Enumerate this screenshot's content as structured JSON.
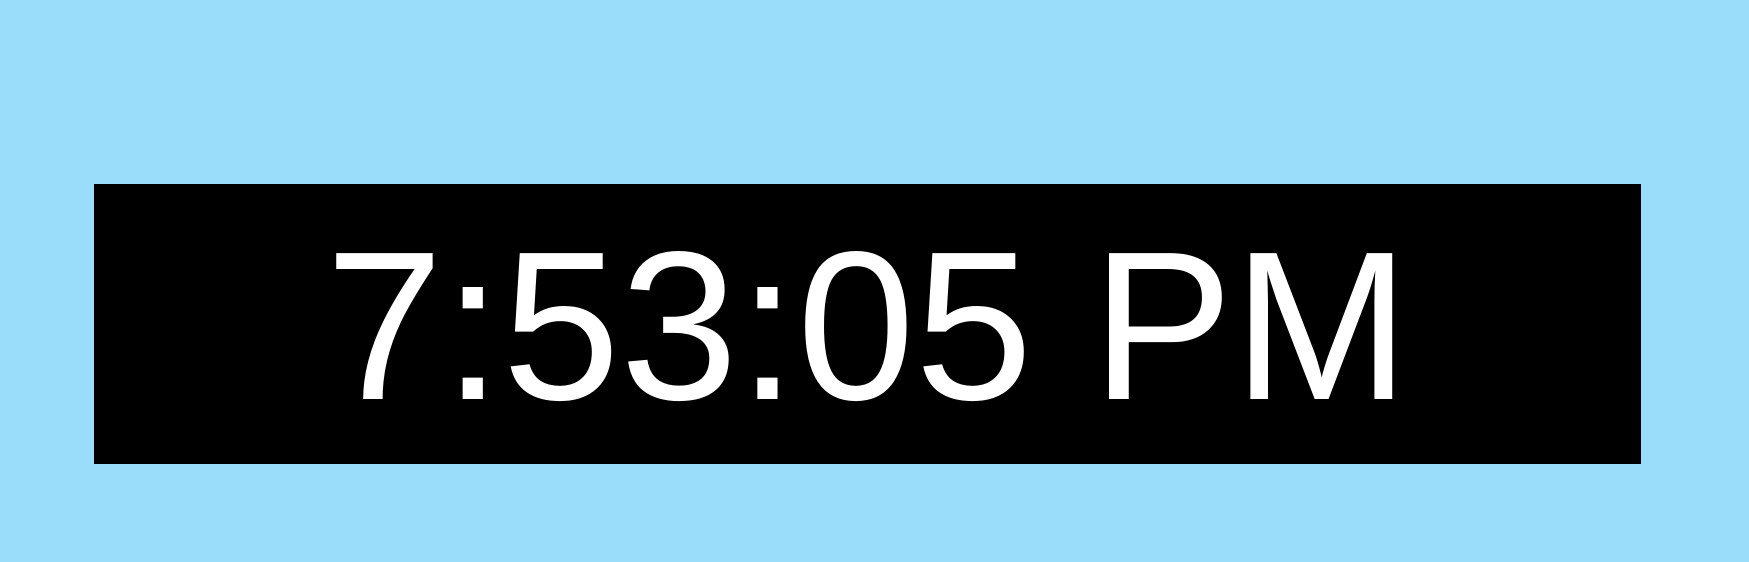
{
  "clock": {
    "time": "7:53:05 PM"
  },
  "colors": {
    "page_background": "#9ADDFB",
    "panel_background": "#000000",
    "text": "#FFFFFF"
  }
}
